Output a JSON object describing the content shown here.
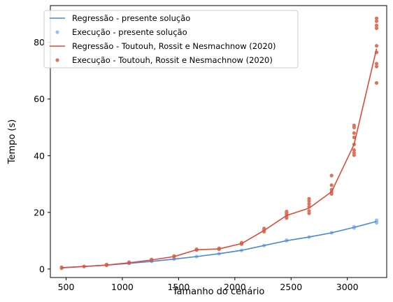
{
  "chart_data": {
    "type": "line",
    "title": "",
    "xlabel": "Tamanho do cenário",
    "ylabel": "Tempo (s)",
    "xlim": [
      360,
      3350
    ],
    "ylim": [
      -3,
      93
    ],
    "xticks": [
      500,
      1000,
      1500,
      2000,
      2500,
      3000
    ],
    "yticks": [
      0,
      20,
      40,
      60,
      80
    ],
    "grid": false,
    "legend_position": "top-left",
    "series": [
      {
        "name": "Regressão - presente solução",
        "kind": "line",
        "color": "#4a86d9",
        "x": [
          460,
          660,
          860,
          1060,
          1260,
          1460,
          1660,
          1860,
          2060,
          2260,
          2460,
          2660,
          2860,
          3060,
          3260
        ],
        "y": [
          0.5,
          0.9,
          1.4,
          2.0,
          2.7,
          3.5,
          4.4,
          5.4,
          6.6,
          8.3,
          10.0,
          11.3,
          12.8,
          14.7,
          16.8
        ]
      },
      {
        "name": "Execução - presente solução",
        "kind": "scatter",
        "color": "#9cc0ee",
        "x": [
          460,
          460,
          660,
          860,
          860,
          1060,
          1260,
          1260,
          1460,
          1660,
          1860,
          2060,
          2260,
          2460,
          2460,
          2660,
          2860,
          3060,
          3060,
          3260,
          3260,
          3260
        ],
        "y": [
          0.5,
          0.6,
          0.9,
          1.4,
          1.5,
          2.0,
          2.7,
          2.8,
          3.5,
          4.4,
          5.4,
          6.6,
          8.3,
          10.0,
          10.2,
          11.3,
          12.8,
          14.5,
          14.9,
          16.3,
          16.8,
          17.2
        ]
      },
      {
        "name": "Regressão - Toutouh, Rossit e Nesmachnow (2020)",
        "kind": "line",
        "color": "#e04a3a",
        "x": [
          460,
          660,
          860,
          1060,
          1260,
          1460,
          1660,
          1860,
          2060,
          2260,
          2460,
          2660,
          2860,
          3060,
          3260
        ],
        "y": [
          0.4,
          0.9,
          1.4,
          2.2,
          3.2,
          4.4,
          6.8,
          7.1,
          9.0,
          13.6,
          18.9,
          21.5,
          27.3,
          44.0,
          77.8
        ]
      },
      {
        "name": "Execução - Toutouh, Rossit e Nesmachnow (2020)",
        "kind": "scatter",
        "color": "#d9745e",
        "x": [
          460,
          460,
          660,
          860,
          860,
          1060,
          1060,
          1260,
          1260,
          1460,
          1460,
          1660,
          1660,
          1860,
          1860,
          2060,
          2060,
          2260,
          2260,
          2260,
          2460,
          2460,
          2460,
          2460,
          2460,
          2660,
          2660,
          2660,
          2660,
          2660,
          2660,
          2860,
          2860,
          2860,
          2860,
          2860,
          3060,
          3060,
          3060,
          3060,
          3060,
          3060,
          3060,
          3060,
          3260,
          3260,
          3260,
          3260,
          3260,
          3260,
          3260,
          3260,
          3260
        ],
        "y": [
          0.3,
          0.6,
          0.9,
          1.3,
          1.6,
          2.1,
          2.4,
          3.0,
          3.4,
          4.3,
          4.6,
          6.7,
          7.0,
          7.0,
          7.3,
          8.8,
          9.3,
          13.2,
          13.8,
          14.3,
          18.0,
          18.6,
          19.2,
          19.8,
          20.3,
          19.7,
          20.5,
          22.0,
          23.0,
          24.0,
          24.8,
          26.5,
          27.2,
          28.0,
          29.6,
          33.0,
          40.2,
          41.0,
          42.0,
          44.0,
          46.5,
          48.0,
          50.0,
          50.7,
          65.7,
          71.5,
          72.5,
          76.5,
          78.8,
          85.0,
          86.0,
          87.5,
          88.5
        ]
      }
    ]
  }
}
